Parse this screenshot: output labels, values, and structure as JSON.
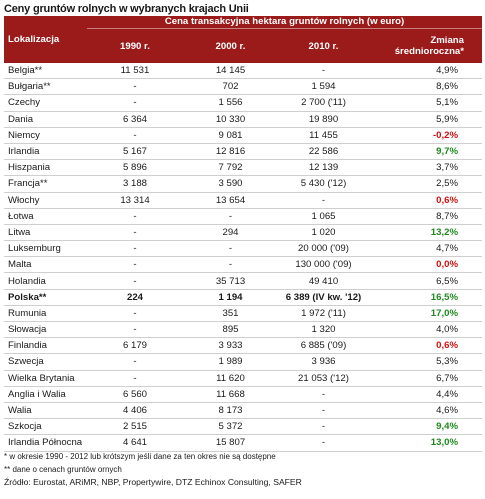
{
  "title": "Ceny gruntów rolnych w wybranych krajach Unii",
  "header": {
    "location": "Lokalizacja",
    "group": "Cena transakcyjna hektara gruntów rolnych (w euro)",
    "y1990": "1990 r.",
    "y2000": "2000 r.",
    "y2010": "2010 r.",
    "change_line1": "Zmiana",
    "change_line2": "średnioroczna*"
  },
  "rows": [
    {
      "name": "Belgia**",
      "v1990": "11 531",
      "v2000": "14 145",
      "v2010": "-",
      "change": "4,9%",
      "trend": "normal"
    },
    {
      "name": "Bułgaria**",
      "v1990": "-",
      "v2000": "702",
      "v2010": "1 594",
      "change": "8,6%",
      "trend": "normal"
    },
    {
      "name": "Czechy",
      "v1990": "-",
      "v2000": "1 556",
      "v2010": "2 700 ('11)",
      "change": "5,1%",
      "trend": "normal"
    },
    {
      "name": "Dania",
      "v1990": "6 364",
      "v2000": "10 330",
      "v2010": "19 890",
      "change": "5,9%",
      "trend": "normal"
    },
    {
      "name": "Niemcy",
      "v1990": "-",
      "v2000": "9 081",
      "v2010": "11 455",
      "change": "-0,2%",
      "trend": "neg"
    },
    {
      "name": "Irlandia",
      "v1990": "5 167",
      "v2000": "12 816",
      "v2010": "22 586",
      "change": "9,7%",
      "trend": "pos"
    },
    {
      "name": "Hiszpania",
      "v1990": "5 896",
      "v2000": "7 792",
      "v2010": "12 139",
      "change": "3,7%",
      "trend": "normal"
    },
    {
      "name": "Francja**",
      "v1990": "3 188",
      "v2000": "3 590",
      "v2010": "5 430 ('12)",
      "change": "2,5%",
      "trend": "normal"
    },
    {
      "name": "Włochy",
      "v1990": "13 314",
      "v2000": "13 654",
      "v2010": "-",
      "change": "0,6%",
      "trend": "neg"
    },
    {
      "name": "Łotwa",
      "v1990": "-",
      "v2000": "-",
      "v2010": "1 065",
      "change": "8,7%",
      "trend": "normal"
    },
    {
      "name": "Litwa",
      "v1990": "-",
      "v2000": "294",
      "v2010": "1 020",
      "change": "13,2%",
      "trend": "pos"
    },
    {
      "name": "Luksemburg",
      "v1990": "-",
      "v2000": "-",
      "v2010": "20 000 ('09)",
      "change": "4,7%",
      "trend": "normal"
    },
    {
      "name": "Malta",
      "v1990": "-",
      "v2000": "-",
      "v2010": "130 000 ('09)",
      "change": "0,0%",
      "trend": "neg"
    },
    {
      "name": "Holandia",
      "v1990": "-",
      "v2000": "35 713",
      "v2010": "49 410",
      "change": "6,5%",
      "trend": "normal"
    },
    {
      "name": "Polska**",
      "v1990": "224",
      "v2000": "1 194",
      "v2010": "6 389 (IV kw. '12)",
      "change": "16,5%",
      "trend": "pos",
      "bold": true
    },
    {
      "name": "Rumunia",
      "v1990": "-",
      "v2000": "351",
      "v2010": "1 972 ('11)",
      "change": "17,0%",
      "trend": "pos"
    },
    {
      "name": "Słowacja",
      "v1990": "-",
      "v2000": "895",
      "v2010": "1 320",
      "change": "4,0%",
      "trend": "normal"
    },
    {
      "name": "Finlandia",
      "v1990": "6 179",
      "v2000": "3 933",
      "v2010": "6 885 ('09)",
      "change": "0,6%",
      "trend": "neg"
    },
    {
      "name": "Szwecja",
      "v1990": "-",
      "v2000": "1 989",
      "v2010": "3 936",
      "change": "5,3%",
      "trend": "normal"
    },
    {
      "name": "Wielka Brytania",
      "v1990": "-",
      "v2000": "11 620",
      "v2010": "21 053 ('12)",
      "change": "6,7%",
      "trend": "normal"
    },
    {
      "name": "Anglia i Walia",
      "v1990": "6 560",
      "v2000": "11 668",
      "v2010": "-",
      "change": "4,4%",
      "trend": "normal"
    },
    {
      "name": "Walia",
      "v1990": "4 406",
      "v2000": "8 173",
      "v2010": "-",
      "change": "4,6%",
      "trend": "normal"
    },
    {
      "name": "Szkocja",
      "v1990": "2 515",
      "v2000": "5 372",
      "v2010": "-",
      "change": "9,4%",
      "trend": "pos"
    },
    {
      "name": "Irlandia Północna",
      "v1990": "4 641",
      "v2000": "15 807",
      "v2010": "-",
      "change": "13,0%",
      "trend": "pos"
    }
  ],
  "notes": {
    "note1": "* w okresie 1990 - 2012 lub krótszym jeśli dane za ten okres nie są dostępne",
    "note2": "** dane o cenach gruntów ornych",
    "source": "Źródło: Eurostat, ARiMR, NBP, Propertywire, DTZ Echinox Consulting, SAFER"
  },
  "colors": {
    "header_bg": "#9b1b1b",
    "positive": "#1e8a1e",
    "negative": "#cc1111"
  }
}
